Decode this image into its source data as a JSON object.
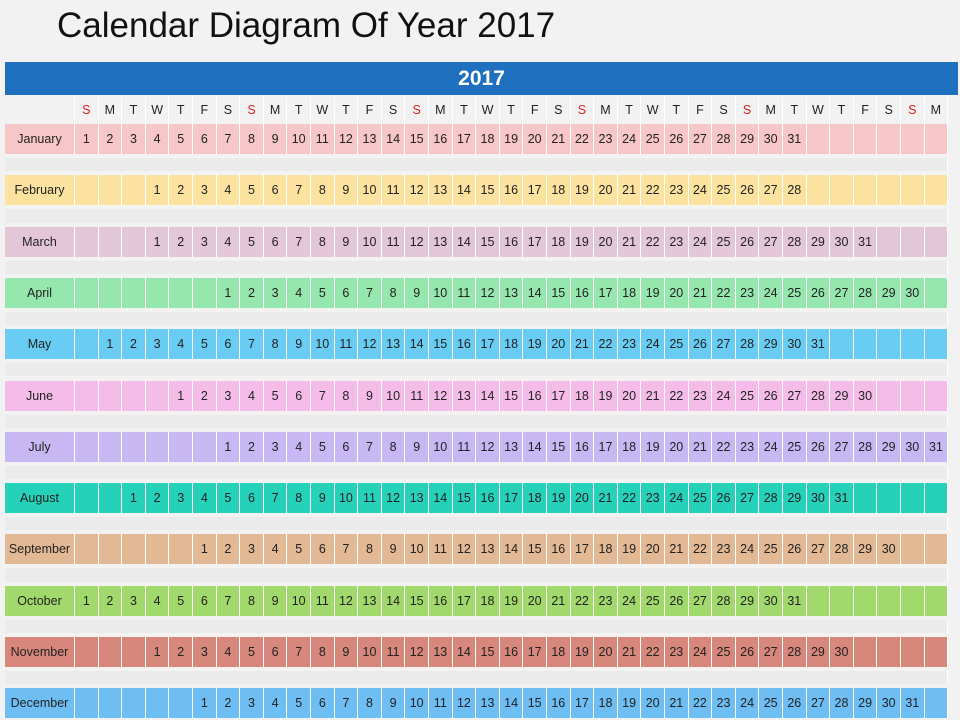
{
  "title": "Calendar Diagram Of Year 2017",
  "year": "2017",
  "colors": {
    "year_bar": "#1f6fbf",
    "sunday_header": "#e02020"
  },
  "weekday_headers": [
    "S",
    "M",
    "T",
    "W",
    "T",
    "F",
    "S",
    "S",
    "M",
    "T",
    "W",
    "T",
    "F",
    "S",
    "S",
    "M",
    "T",
    "W",
    "T",
    "F",
    "S",
    "S",
    "M",
    "T",
    "W",
    "T",
    "F",
    "S",
    "S",
    "M",
    "T",
    "W",
    "T",
    "F",
    "S",
    "S",
    "M"
  ],
  "months": [
    {
      "name": "January",
      "offset": 0,
      "days": 31,
      "color": "#f7c6c8"
    },
    {
      "name": "February",
      "offset": 3,
      "days": 28,
      "color": "#fbe29e"
    },
    {
      "name": "March",
      "offset": 3,
      "days": 31,
      "color": "#e3c6d8"
    },
    {
      "name": "April",
      "offset": 6,
      "days": 30,
      "color": "#96e7ae"
    },
    {
      "name": "May",
      "offset": 1,
      "days": 31,
      "color": "#69cdf3"
    },
    {
      "name": "June",
      "offset": 4,
      "days": 30,
      "color": "#f5bcea"
    },
    {
      "name": "July",
      "offset": 6,
      "days": 31,
      "color": "#c7b8f3"
    },
    {
      "name": "August",
      "offset": 2,
      "days": 31,
      "color": "#25d2b9"
    },
    {
      "name": "September",
      "offset": 5,
      "days": 30,
      "color": "#e2b994"
    },
    {
      "name": "October",
      "offset": 0,
      "days": 31,
      "color": "#a2d96c"
    },
    {
      "name": "November",
      "offset": 3,
      "days": 30,
      "color": "#d8877c"
    },
    {
      "name": "December",
      "offset": 5,
      "days": 31,
      "color": "#6ebef3"
    }
  ]
}
